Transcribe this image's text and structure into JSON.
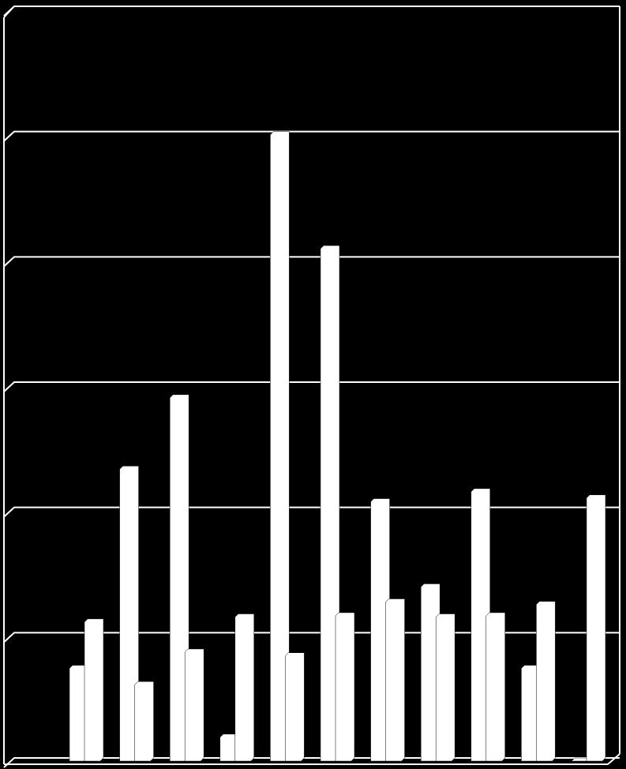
{
  "chart_data": {
    "type": "bar",
    "categories": [
      null,
      null,
      null,
      null,
      null,
      null,
      null,
      null,
      null,
      null,
      null
    ],
    "series": [
      {
        "color": "#ffffff",
        "values": [
          0.74,
          2.33,
          2.9,
          0.19,
          5.0,
          4.09,
          2.07,
          1.39,
          2.15,
          0.74,
          0
        ]
      },
      {
        "color": "#ffffff",
        "values": [
          1.11,
          0.61,
          0.87,
          1.15,
          0.84,
          1.16,
          1.27,
          1.15,
          1.16,
          1.25,
          2.1
        ]
      }
    ],
    "ylim": [
      0,
      6
    ],
    "yticks": [
      0,
      1,
      2,
      3,
      4,
      5,
      6
    ],
    "grid": true
  }
}
